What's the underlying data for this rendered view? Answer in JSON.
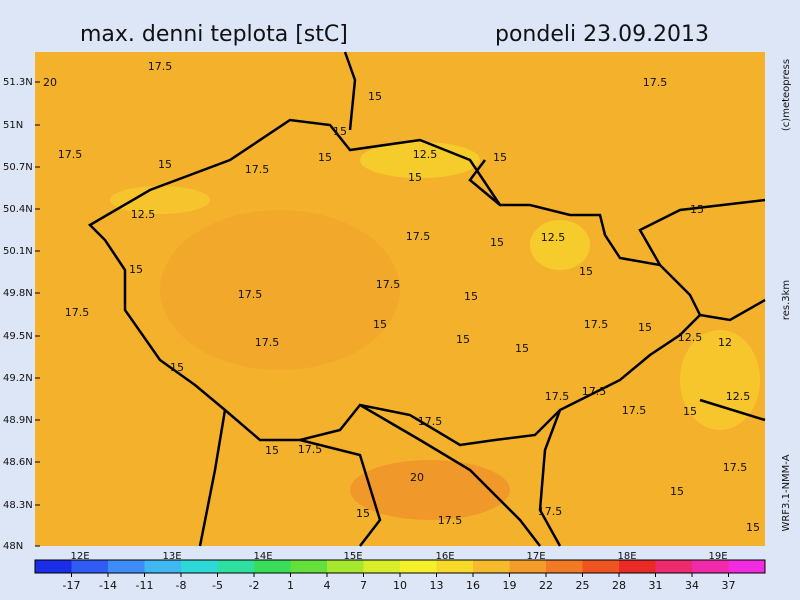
{
  "header": {
    "title": "max. denni teplota [stC]",
    "date": "pondeli 23.09.2013"
  },
  "side_labels": {
    "copyright": "(c)meteopress",
    "resolution": "res.3km",
    "model": "WRF3.1-NMM-A"
  },
  "lat_labels": [
    "51.3N",
    "51N",
    "50.7N",
    "50.4N",
    "50.1N",
    "49.8N",
    "49.5N",
    "49.2N",
    "48.9N",
    "48.6N",
    "48.3N",
    "48N"
  ],
  "lon_labels": [
    "12E",
    "13E",
    "14E",
    "15E",
    "16E",
    "17E",
    "18E",
    "19E"
  ],
  "contour_labels": [
    "17.5",
    "20",
    "15",
    "15",
    "12.5",
    "17.5",
    "15",
    "15",
    "17.5",
    "15",
    "15",
    "17.5",
    "12.5",
    "17.5",
    "12.5",
    "15",
    "15",
    "17.5",
    "17.5",
    "15",
    "15",
    "15",
    "17.5",
    "15",
    "17.5",
    "15",
    "15",
    "15",
    "17.5",
    "12.5",
    "12",
    "15",
    "17.5",
    "17.5",
    "17.5",
    "15",
    "12.5",
    "17.5",
    "15",
    "17.5",
    "20",
    "17.5",
    "15",
    "17.5",
    "17.5",
    "15",
    "15"
  ],
  "colorbar": {
    "ticks": [
      -17,
      -14,
      -11,
      -8,
      -5,
      -2,
      1,
      4,
      7,
      10,
      13,
      16,
      19,
      22,
      25,
      28,
      31,
      34,
      37
    ],
    "colors": [
      "#1a2ee8",
      "#2f5cf5",
      "#3e8cf7",
      "#3fb8f2",
      "#2ed8d8",
      "#2ee0a0",
      "#3add5a",
      "#63e03a",
      "#a5e82e",
      "#d8ee2a",
      "#f4f02a",
      "#f7d92a",
      "#f6bb2c",
      "#f49c2a",
      "#f27a24",
      "#ee5420",
      "#ea2a26",
      "#ee2a6e",
      "#f02aaa",
      "#f22ae0"
    ]
  }
}
